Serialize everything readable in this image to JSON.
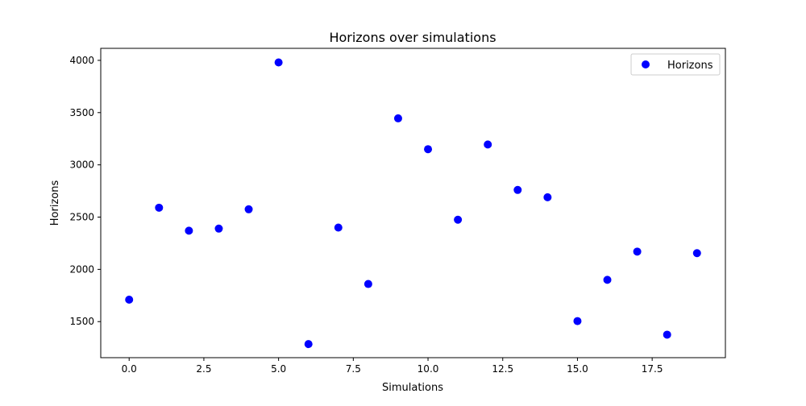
{
  "chart_data": {
    "type": "scatter",
    "title": "Horizons over simulations",
    "xlabel": "Simulations",
    "ylabel": "Horizons",
    "xlim": [
      -0.95,
      19.95
    ],
    "ylim": [
      1155,
      4115
    ],
    "xticks": [
      0.0,
      2.5,
      5.0,
      7.5,
      10.0,
      12.5,
      15.0,
      17.5
    ],
    "xtick_labels": [
      "0.0",
      "2.5",
      "5.0",
      "7.5",
      "10.0",
      "12.5",
      "15.0",
      "17.5"
    ],
    "yticks": [
      1500,
      2000,
      2500,
      3000,
      3500,
      4000
    ],
    "ytick_labels": [
      "1500",
      "2000",
      "2500",
      "3000",
      "3500",
      "4000"
    ],
    "grid": false,
    "legend_position": "top-right",
    "series": [
      {
        "name": "Horizons",
        "color": "#0000ff",
        "marker": "circle",
        "x": [
          0,
          1,
          2,
          3,
          4,
          5,
          6,
          7,
          8,
          9,
          10,
          11,
          12,
          13,
          14,
          15,
          16,
          17,
          18,
          19
        ],
        "y": [
          1710,
          2590,
          2370,
          2390,
          2575,
          3980,
          1285,
          2400,
          1860,
          3445,
          3150,
          2475,
          3195,
          2760,
          2690,
          1505,
          1900,
          2170,
          1375,
          2155
        ]
      }
    ]
  }
}
